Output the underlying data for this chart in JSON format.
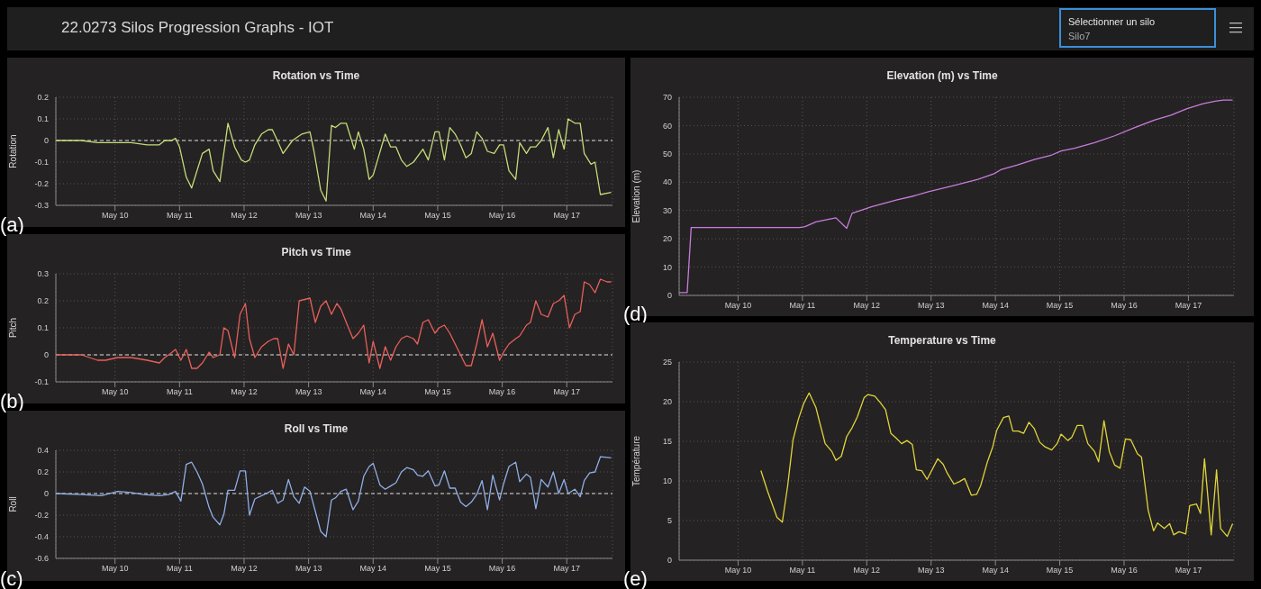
{
  "chart_data": [
    {
      "type": "other",
      "title": "22.0273 Silos Progression Graphs - IOT",
      "annotations": [
        "Sélectionner un silo",
        "Silo7"
      ]
    },
    {
      "type": "line",
      "title": "Rotation vs Time",
      "ylabel": "Rotation",
      "xlim": [
        "--05-09T14:00",
        "--05-18T05:00"
      ],
      "xticks": [
        {
          "value": "--05-10T12:00",
          "label": "May 10"
        },
        {
          "value": "--05-11T12:00",
          "label": "May 11"
        },
        {
          "value": "--05-12T12:00",
          "label": "May 12"
        },
        {
          "value": "--05-13T12:00",
          "label": "May 13"
        },
        {
          "value": "--05-14T12:00",
          "label": "May 14"
        },
        {
          "value": "--05-15T12:00",
          "label": "May 15"
        },
        {
          "value": "--05-16T12:00",
          "label": "May 16"
        },
        {
          "value": "--05-17T12:00",
          "label": "May 17"
        }
      ],
      "ylim": [
        -0.3,
        0.2
      ],
      "yticks": [
        -0.3,
        -0.2,
        -0.1,
        0,
        0.1,
        0.2
      ],
      "grid": true,
      "marker": "none",
      "ref_lines": [
        {
          "axis": "y",
          "value": 0,
          "color": "#dddddd",
          "line_style": "dashed"
        }
      ],
      "annotations": [
        "(a)"
      ],
      "series": [
        {
          "color": "#c3dc7a",
          "x": [
            "--05-09T14:00",
            "--05-09T19:00",
            "--05-09T23:30",
            "--05-10T05:30",
            "--05-10T12:00",
            "--05-10T14:30",
            "--05-10T18:00",
            "--05-11T00:00",
            "--05-11T04:30",
            "--05-11T06:30",
            "--05-11T09:00",
            "--05-11T10:30",
            "--05-11T12:00",
            "--05-11T14:30",
            "--05-11T16:30",
            "--05-11T20:30",
            "--05-11T23:00",
            "--05-12T00:30",
            "--05-12T03:00",
            "--05-12T06:00",
            "--05-12T08:30",
            "--05-12T11:00",
            "--05-12T12:30",
            "--05-12T14:00",
            "--05-12T16:00",
            "--05-12T18:30",
            "--05-12T21:00",
            "--05-12T22:30",
            "--05-13T00:00",
            "--05-13T02:30",
            "--05-13T06:00",
            "--05-13T09:30",
            "--05-13T12:30",
            "--05-13T14:00",
            "--05-13T16:30",
            "--05-13T18:30",
            "--05-13T20:30",
            "--05-13T22:00",
            "--05-14T00:00",
            "--05-14T02:00",
            "--05-14T05:00",
            "--05-14T06:30",
            "--05-14T08:30",
            "--05-14T10:30",
            "--05-14T12:00",
            "--05-14T16:30",
            "--05-14T18:30",
            "--05-14T20:30",
            "--05-14T22:30",
            "--05-15T00:30",
            "--05-15T03:00",
            "--05-15T06:30",
            "--05-15T08:30",
            "--05-15T11:00",
            "--05-15T12:30",
            "--05-15T14:30",
            "--05-15T16:30",
            "--05-15T18:30",
            "--05-15T20:30",
            "--05-15T22:30",
            "--05-16T00:30",
            "--05-16T02:30",
            "--05-16T04:30",
            "--05-16T06:30",
            "--05-16T09:00",
            "--05-16T11:00",
            "--05-16T12:30",
            "--05-16T14:30",
            "--05-16T17:00",
            "--05-16T18:30",
            "--05-16T21:00",
            "--05-16T22:30",
            "--05-17T00:30",
            "--05-17T02:30",
            "--05-17T05:00",
            "--05-17T07:00",
            "--05-17T09:00",
            "--05-17T11:00",
            "--05-17T12:30",
            "--05-17T15:00",
            "--05-17T17:00",
            "--05-17T18:30",
            "--05-17T21:00",
            "--05-17T22:30",
            "--05-18T00:30",
            "--05-18T04:30"
          ],
          "values": [
            0,
            0,
            0,
            -0.01,
            -0.01,
            -0.01,
            -0.01,
            -0.02,
            -0.02,
            0,
            0,
            0.01,
            -0.03,
            -0.17,
            -0.22,
            -0.06,
            -0.04,
            -0.14,
            -0.19,
            0.08,
            -0.03,
            -0.09,
            -0.1,
            -0.09,
            -0.02,
            0.03,
            0.05,
            0.05,
            0.01,
            -0.06,
            0,
            0.03,
            0.04,
            -0.05,
            -0.23,
            -0.28,
            0.07,
            0.06,
            0.08,
            0.08,
            -0.04,
            0.04,
            -0.04,
            -0.18,
            -0.16,
            0.03,
            -0.03,
            -0.03,
            -0.09,
            -0.12,
            -0.1,
            -0.04,
            -0.09,
            0.04,
            0.04,
            -0.09,
            0.06,
            0.03,
            -0.02,
            -0.08,
            -0.06,
            0.04,
            0.01,
            -0.05,
            -0.06,
            -0.02,
            -0.02,
            -0.14,
            -0.18,
            -0.01,
            -0.06,
            -0.03,
            -0.03,
            0,
            0.06,
            -0.08,
            0.05,
            -0.04,
            0.1,
            0.08,
            0.08,
            -0.06,
            -0.11,
            -0.1,
            -0.25,
            -0.24
          ]
        }
      ]
    },
    {
      "type": "line",
      "title": "Pitch vs Time",
      "ylabel": "Pitch",
      "xlim": [
        "--05-09T14:00",
        "--05-18T05:00"
      ],
      "xticks": [
        {
          "value": "--05-10T12:00",
          "label": "May 10"
        },
        {
          "value": "--05-11T12:00",
          "label": "May 11"
        },
        {
          "value": "--05-12T12:00",
          "label": "May 12"
        },
        {
          "value": "--05-13T12:00",
          "label": "May 13"
        },
        {
          "value": "--05-14T12:00",
          "label": "May 14"
        },
        {
          "value": "--05-15T12:00",
          "label": "May 15"
        },
        {
          "value": "--05-16T12:00",
          "label": "May 16"
        },
        {
          "value": "--05-17T12:00",
          "label": "May 17"
        }
      ],
      "ylim": [
        -0.1,
        0.3
      ],
      "yticks": [
        -0.1,
        0,
        0.1,
        0.2,
        0.3
      ],
      "grid": true,
      "marker": "none",
      "ref_lines": [
        {
          "axis": "y",
          "value": 0,
          "color": "#dddddd",
          "line_style": "dashed"
        }
      ],
      "annotations": [
        "(b)"
      ],
      "series": [
        {
          "color": "#e8605a",
          "x": [
            "--05-09T14:00",
            "--05-09T19:00",
            "--05-09T23:30",
            "--05-10T05:30",
            "--05-10T08:30",
            "--05-10T13:00",
            "--05-10T14:30",
            "--05-10T18:00",
            "--05-11T00:00",
            "--05-11T04:30",
            "--05-11T06:30",
            "--05-11T08:00",
            "--05-11T10:30",
            "--05-11T12:30",
            "--05-11T14:30",
            "--05-11T16:30",
            "--05-11T18:30",
            "--05-11T20:30",
            "--05-11T23:00",
            "--05-12T00:30",
            "--05-12T03:00",
            "--05-12T04:30",
            "--05-12T06:00",
            "--05-12T08:30",
            "--05-12T10:30",
            "--05-12T12:30",
            "--05-12T14:00",
            "--05-12T16:00",
            "--05-12T18:30",
            "--05-12T21:00",
            "--05-12T23:00",
            "--05-13T00:30",
            "--05-13T02:30",
            "--05-13T04:30",
            "--05-13T06:30",
            "--05-13T08:30",
            "--05-13T12:30",
            "--05-13T14:30",
            "--05-13T16:30",
            "--05-13T18:30",
            "--05-13T20:30",
            "--05-13T22:30",
            "--05-14T00:00",
            "--05-14T02:00",
            "--05-14T04:30",
            "--05-14T06:30",
            "--05-14T08:30",
            "--05-14T10:30",
            "--05-14T12:00",
            "--05-14T14:30",
            "--05-14T16:30",
            "--05-14T18:30",
            "--05-14T20:30",
            "--05-14T22:30",
            "--05-15T00:30",
            "--05-15T03:00",
            "--05-15T04:30",
            "--05-15T06:30",
            "--05-15T08:30",
            "--05-15T11:00",
            "--05-15T12:30",
            "--05-15T14:30",
            "--05-15T16:30",
            "--05-15T18:30",
            "--05-15T20:30",
            "--05-15T22:30",
            "--05-16T00:30",
            "--05-16T02:30",
            "--05-16T04:30",
            "--05-16T06:30",
            "--05-16T08:30",
            "--05-16T11:00",
            "--05-16T12:30",
            "--05-16T14:30",
            "--05-16T17:00",
            "--05-16T18:30",
            "--05-16T21:00",
            "--05-16T22:30",
            "--05-17T00:30",
            "--05-17T02:30",
            "--05-17T05:00",
            "--05-17T07:00",
            "--05-17T09:00",
            "--05-17T11:00",
            "--05-17T13:00",
            "--05-17T15:00",
            "--05-17T17:00",
            "--05-17T18:30",
            "--05-17T20:30",
            "--05-17T22:30",
            "--05-18T00:30",
            "--05-18T03:00",
            "--05-18T04:30"
          ],
          "values": [
            0,
            0,
            0,
            -0.02,
            -0.02,
            -0.01,
            -0.01,
            -0.01,
            -0.02,
            -0.03,
            -0.01,
            0,
            0.02,
            -0.02,
            0.02,
            -0.05,
            -0.05,
            -0.03,
            0.01,
            -0.01,
            0,
            0.1,
            0.09,
            -0.01,
            0.15,
            0.19,
            0.06,
            -0.01,
            0.03,
            0.05,
            0.06,
            0.06,
            -0.05,
            0.04,
            0,
            0.2,
            0.21,
            0.12,
            0.18,
            0.2,
            0.15,
            0.19,
            0.17,
            0.12,
            0.06,
            0.08,
            0.11,
            -0.03,
            0.05,
            -0.05,
            0.03,
            -0.02,
            0.03,
            0.06,
            0.07,
            0.06,
            0.04,
            0.12,
            0.13,
            0.08,
            0.1,
            0.11,
            0.08,
            0.04,
            0,
            -0.04,
            -0.04,
            0.04,
            0.13,
            0.03,
            0.08,
            -0.02,
            0.01,
            0.04,
            0.06,
            0.07,
            0.11,
            0.12,
            0.2,
            0.15,
            0.14,
            0.19,
            0.2,
            0.22,
            0.1,
            0.15,
            0.16,
            0.27,
            0.26,
            0.23,
            0.28,
            0.27,
            0.27
          ]
        }
      ]
    },
    {
      "type": "line",
      "title": "Roll vs Time",
      "ylabel": "Roll",
      "xlim": [
        "--05-09T14:00",
        "--05-18T05:00"
      ],
      "xticks": [
        {
          "value": "--05-10T12:00",
          "label": "May 10"
        },
        {
          "value": "--05-11T12:00",
          "label": "May 11"
        },
        {
          "value": "--05-12T12:00",
          "label": "May 12"
        },
        {
          "value": "--05-13T12:00",
          "label": "May 13"
        },
        {
          "value": "--05-14T12:00",
          "label": "May 14"
        },
        {
          "value": "--05-15T12:00",
          "label": "May 15"
        },
        {
          "value": "--05-16T12:00",
          "label": "May 16"
        },
        {
          "value": "--05-17T12:00",
          "label": "May 17"
        }
      ],
      "ylim": [
        -0.6,
        0.4
      ],
      "yticks": [
        -0.6,
        -0.4,
        -0.2,
        0,
        0.2,
        0.4
      ],
      "grid": true,
      "marker": "none",
      "ref_lines": [
        {
          "axis": "y",
          "value": 0,
          "color": "#dddddd",
          "line_style": "dashed"
        }
      ],
      "annotations": [
        "(c)"
      ],
      "series": [
        {
          "color": "#8fb0e8",
          "x": [
            "--05-09T14:00",
            "--05-09T23:30",
            "--05-10T07:00",
            "--05-10T13:00",
            "--05-10T18:00",
            "--05-10T22:30",
            "--05-11T04:30",
            "--05-11T08:00",
            "--05-11T10:30",
            "--05-11T12:30",
            "--05-11T14:30",
            "--05-11T16:30",
            "--05-11T18:30",
            "--05-11T20:30",
            "--05-11T23:00",
            "--05-12T00:30",
            "--05-12T03:00",
            "--05-12T04:30",
            "--05-12T06:00",
            "--05-12T08:30",
            "--05-12T10:30",
            "--05-12T12:30",
            "--05-12T14:00",
            "--05-12T16:00",
            "--05-12T21:00",
            "--05-12T22:30",
            "--05-13T00:30",
            "--05-13T02:30",
            "--05-13T04:30",
            "--05-13T06:30",
            "--05-13T08:30",
            "--05-13T10:30",
            "--05-13T12:30",
            "--05-13T16:30",
            "--05-13T18:30",
            "--05-13T20:30",
            "--05-13T22:00",
            "--05-14T00:00",
            "--05-14T02:00",
            "--05-14T04:30",
            "--05-14T06:30",
            "--05-14T08:30",
            "--05-14T10:30",
            "--05-14T12:00",
            "--05-14T14:30",
            "--05-14T16:30",
            "--05-14T18:30",
            "--05-14T20:30",
            "--05-14T22:30",
            "--05-15T00:30",
            "--05-15T03:00",
            "--05-15T04:30",
            "--05-15T06:30",
            "--05-15T08:30",
            "--05-15T11:00",
            "--05-15T12:30",
            "--05-15T14:30",
            "--05-15T16:30",
            "--05-15T18:30",
            "--05-15T20:30",
            "--05-15T22:30",
            "--05-16T00:30",
            "--05-16T02:30",
            "--05-16T04:30",
            "--05-16T06:30",
            "--05-16T08:30",
            "--05-16T11:00",
            "--05-16T12:30",
            "--05-16T14:30",
            "--05-16T17:00",
            "--05-16T18:30",
            "--05-16T21:00",
            "--05-16T22:30",
            "--05-17T00:30",
            "--05-17T02:30",
            "--05-17T05:00",
            "--05-17T07:00",
            "--05-17T09:00",
            "--05-17T11:00",
            "--05-17T12:30",
            "--05-17T15:00",
            "--05-17T17:00",
            "--05-17T18:30",
            "--05-17T20:30",
            "--05-17T22:30",
            "--05-18T00:30",
            "--05-18T04:30"
          ],
          "values": [
            0,
            -0.01,
            -0.02,
            0.02,
            0.01,
            -0.01,
            -0.02,
            -0.01,
            0.02,
            -0.07,
            0.27,
            0.29,
            0.2,
            0.09,
            -0.13,
            -0.22,
            -0.29,
            -0.19,
            0.03,
            0.03,
            0.21,
            0.21,
            -0.2,
            -0.05,
            0.01,
            0.03,
            -0.09,
            -0.06,
            0.13,
            -0.03,
            -0.09,
            0.06,
            0.02,
            -0.35,
            -0.4,
            -0.06,
            -0.04,
            0.02,
            0.04,
            -0.15,
            -0.07,
            0.16,
            0.25,
            0.28,
            0.08,
            0.04,
            0.07,
            0.1,
            0.2,
            0.24,
            0.22,
            0.17,
            0.16,
            0.21,
            0.07,
            0.08,
            0.21,
            0.05,
            0.05,
            -0.08,
            -0.12,
            -0.08,
            -0.01,
            0.12,
            -0.15,
            0.17,
            -0.06,
            0.09,
            0.25,
            0.29,
            0.11,
            0.18,
            0.15,
            -0.14,
            0.13,
            0.06,
            0.2,
            0,
            0.13,
            0,
            0.04,
            -0.03,
            0.12,
            0.19,
            0.2,
            0.34,
            0.33
          ]
        }
      ]
    },
    {
      "type": "line",
      "title": "Elevation (m) vs Time",
      "ylabel": "Elevation (m)",
      "xlim": [
        "--05-09T14:00",
        "--05-18T05:00"
      ],
      "xticks": [
        {
          "value": "--05-10T12:00",
          "label": "May 10"
        },
        {
          "value": "--05-11T12:00",
          "label": "May 11"
        },
        {
          "value": "--05-12T12:00",
          "label": "May 12"
        },
        {
          "value": "--05-13T12:00",
          "label": "May 13"
        },
        {
          "value": "--05-14T12:00",
          "label": "May 14"
        },
        {
          "value": "--05-15T12:00",
          "label": "May 15"
        },
        {
          "value": "--05-16T12:00",
          "label": "May 16"
        },
        {
          "value": "--05-17T12:00",
          "label": "May 17"
        }
      ],
      "ylim": [
        0,
        70
      ],
      "yticks": [
        0,
        10,
        20,
        30,
        40,
        50,
        60,
        70
      ],
      "grid": true,
      "marker": "none",
      "annotations": [
        "(d)"
      ],
      "series": [
        {
          "color": "#c77ddc",
          "x": [
            "--05-09T14:00",
            "--05-09T17:00",
            "--05-09T18:30",
            "--05-11T11:00",
            "--05-11T13:00",
            "--05-11T17:00",
            "--05-12T00:30",
            "--05-12T04:30",
            "--05-12T06:30",
            "--05-12T14:00",
            "--05-12T23:00",
            "--05-13T05:00",
            "--05-13T11:00",
            "--05-13T20:00",
            "--05-14T05:30",
            "--05-14T11:30",
            "--05-14T14:00",
            "--05-14T20:00",
            "--05-15T02:30",
            "--05-15T08:30",
            "--05-15T12:30",
            "--05-15T17:30",
            "--05-16T01:00",
            "--05-16T08:30",
            "--05-16T16:00",
            "--05-16T23:30",
            "--05-17T05:30",
            "--05-17T11:30",
            "--05-17T17:30",
            "--05-17T22:00",
            "--05-18T01:00",
            "--05-18T04:30"
          ],
          "values": [
            1,
            1,
            24,
            24,
            24.3,
            26,
            27.4,
            23.7,
            29,
            31.4,
            33.7,
            35,
            36.6,
            38.7,
            41,
            43,
            44.4,
            46,
            48,
            49.4,
            51,
            52,
            54,
            56.4,
            59.3,
            62,
            63.7,
            66,
            67.7,
            68.6,
            69,
            69
          ]
        }
      ]
    },
    {
      "type": "line",
      "title": "Temperature vs Time",
      "ylabel": "Température",
      "xlim": [
        "--05-09T14:00",
        "--05-18T05:00"
      ],
      "xticks": [
        {
          "value": "--05-10T12:00",
          "label": "May 10"
        },
        {
          "value": "--05-11T12:00",
          "label": "May 11"
        },
        {
          "value": "--05-12T12:00",
          "label": "May 12"
        },
        {
          "value": "--05-13T12:00",
          "label": "May 13"
        },
        {
          "value": "--05-14T12:00",
          "label": "May 14"
        },
        {
          "value": "--05-15T12:00",
          "label": "May 15"
        },
        {
          "value": "--05-16T12:00",
          "label": "May 16"
        },
        {
          "value": "--05-17T12:00",
          "label": "May 17"
        }
      ],
      "ylim": [
        0,
        25
      ],
      "yticks": [
        0,
        5,
        10,
        15,
        20,
        25
      ],
      "grid": true,
      "marker": "none",
      "annotations": [
        "(e)"
      ],
      "series": [
        {
          "color": "#e0d53a",
          "x": [
            "--05-10T20:30",
            "--05-10T23:00",
            "--05-11T02:30",
            "--05-11T04:30",
            "--05-11T06:30",
            "--05-11T08:30",
            "--05-11T10:30",
            "--05-11T12:30",
            "--05-11T14:30",
            "--05-11T17:00",
            "--05-11T18:30",
            "--05-11T20:30",
            "--05-11T23:00",
            "--05-12T00:30",
            "--05-12T02:30",
            "--05-12T04:30",
            "--05-12T06:30",
            "--05-12T08:30",
            "--05-12T11:00",
            "--05-12T12:30",
            "--05-12T15:00",
            "--05-12T17:00",
            "--05-12T19:00",
            "--05-12T21:00",
            "--05-12T23:00",
            "--05-13T01:00",
            "--05-13T03:00",
            "--05-13T05:00",
            "--05-13T06:30",
            "--05-13T08:30",
            "--05-13T10:30",
            "--05-13T14:30",
            "--05-13T16:30",
            "--05-13T18:00",
            "--05-13T20:30",
            "--05-13T22:30",
            "--05-14T00:30",
            "--05-14T03:00",
            "--05-14T05:00",
            "--05-14T06:30",
            "--05-14T09:00",
            "--05-14T11:00",
            "--05-14T12:30",
            "--05-14T15:00",
            "--05-14T17:00",
            "--05-14T18:30",
            "--05-14T20:30",
            "--05-14T22:30",
            "--05-15T00:30",
            "--05-15T02:30",
            "--05-15T04:30",
            "--05-15T06:30",
            "--05-15T09:00",
            "--05-15T11:00",
            "--05-15T12:30",
            "--05-15T15:00",
            "--05-15T16:30",
            "--05-15T18:30",
            "--05-15T20:30",
            "--05-15T22:30",
            "--05-16T01:00",
            "--05-16T02:30",
            "--05-16T04:30",
            "--05-16T06:30",
            "--05-16T08:30",
            "--05-16T10:30",
            "--05-16T12:30",
            "--05-16T14:30",
            "--05-16T17:00",
            "--05-16T18:30",
            "--05-16T21:00",
            "--05-16T23:00",
            "--05-17T00:30",
            "--05-17T03:00",
            "--05-17T05:00",
            "--05-17T06:30",
            "--05-17T08:30",
            "--05-17T11:00",
            "--05-17T12:30",
            "--05-17T15:00",
            "--05-17T16:30",
            "--05-17T18:00",
            "--05-17T20:30",
            "--05-17T22:30",
            "--05-18T00:00",
            "--05-18T02:30",
            "--05-18T04:30"
          ],
          "values": [
            11.3,
            8.7,
            5.4,
            4.8,
            9.4,
            15.2,
            17.8,
            19.8,
            21.1,
            19.3,
            17.3,
            14.7,
            13.7,
            12.6,
            13.1,
            15.6,
            16.7,
            18.1,
            20.5,
            20.9,
            20.7,
            19.9,
            19,
            16,
            15.4,
            14.7,
            15.1,
            14.6,
            11.4,
            11.3,
            10.2,
            12.8,
            12.1,
            11,
            9.6,
            9.9,
            10.3,
            8.2,
            8.3,
            9.4,
            12.4,
            14.3,
            16.4,
            18,
            18.2,
            16.3,
            16.3,
            16,
            17.4,
            16.6,
            14.9,
            14.3,
            13.9,
            14.7,
            15.9,
            15.1,
            15.5,
            17,
            17,
            14.7,
            13.7,
            12.4,
            17.6,
            13.7,
            12,
            11.6,
            15.3,
            15.2,
            13.4,
            13,
            6.3,
            3.7,
            4.7,
            4,
            4.6,
            3.2,
            3.6,
            3.3,
            6.9,
            7.1,
            5.9,
            12.8,
            3.2,
            11.4,
            4,
            3,
            4.6
          ]
        }
      ]
    }
  ]
}
